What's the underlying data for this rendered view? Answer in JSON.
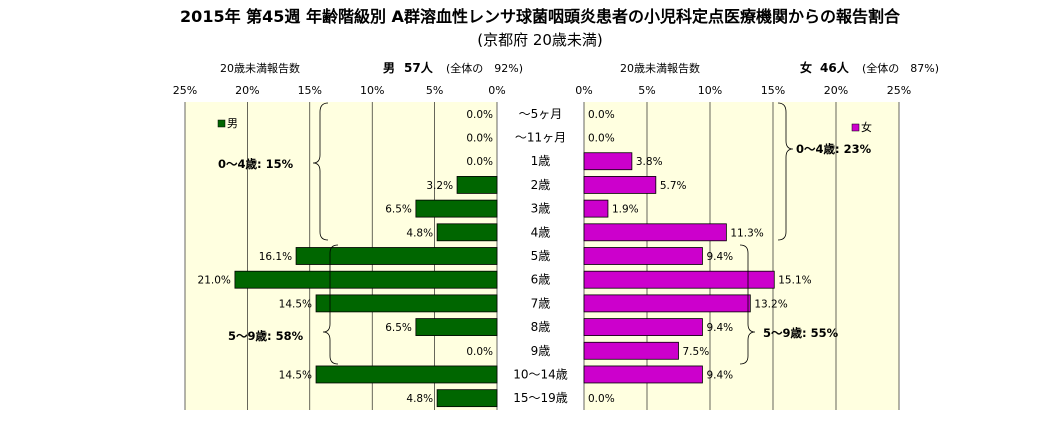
{
  "chart_data": {
    "type": "bar",
    "title": "2015年 第45週 年齢階級別 A群溶血性レンサ球菌咽頭炎患者の小児科定点医療機関からの報告割合",
    "subtitle": "(京都府 20歳未満)",
    "categories": [
      "～5ヶ月",
      "～11ヶ月",
      "1歳",
      "2歳",
      "3歳",
      "4歳",
      "5歳",
      "6歳",
      "7歳",
      "8歳",
      "9歳",
      "10～14歳",
      "15～19歳"
    ],
    "series": [
      {
        "name": "男",
        "color": "#006600",
        "values": [
          0.0,
          0.0,
          0.0,
          3.2,
          6.5,
          4.8,
          16.1,
          21.0,
          14.5,
          6.5,
          0.0,
          14.5,
          4.8
        ],
        "labels": [
          "0.0%",
          "0.0%",
          "0.0%",
          "3.2%",
          "6.5%",
          "4.8%",
          "16.1%",
          "21.0%",
          "14.5%",
          "6.5%",
          "0.0%",
          "14.5%",
          "4.8%"
        ]
      },
      {
        "name": "女",
        "color": "#cc00cc",
        "values": [
          0.0,
          0.0,
          3.8,
          5.7,
          1.9,
          11.3,
          9.4,
          15.1,
          13.2,
          9.4,
          7.5,
          9.4,
          0.0
        ],
        "labels": [
          "0.0%",
          "0.0%",
          "3.8%",
          "5.7%",
          "1.9%",
          "11.3%",
          "9.4%",
          "15.1%",
          "13.2%",
          "9.4%",
          "7.5%",
          "9.4%",
          "0.0%"
        ]
      }
    ],
    "xlim": [
      0,
      25
    ],
    "ticks": [
      0,
      5,
      10,
      15,
      20,
      25
    ],
    "tick_labels": [
      "0%",
      "5%",
      "10%",
      "15%",
      "20%",
      "25%"
    ],
    "grid": true,
    "background_color": "#ffffe0",
    "left_header": {
      "label": "20歳未満報告数",
      "sex": "男",
      "count": "57人",
      "share": "(全体の　92%)"
    },
    "right_header": {
      "label": "20歳未満報告数",
      "sex": "女",
      "count": "46人",
      "share": "(全体の　87%)"
    },
    "group_annotations": {
      "male_0_4": "0～4歳: 15%",
      "male_5_9": "5～9歳: 58%",
      "female_0_4": "0～4歳: 23%",
      "female_5_9": "5～9歳: 55%"
    }
  }
}
